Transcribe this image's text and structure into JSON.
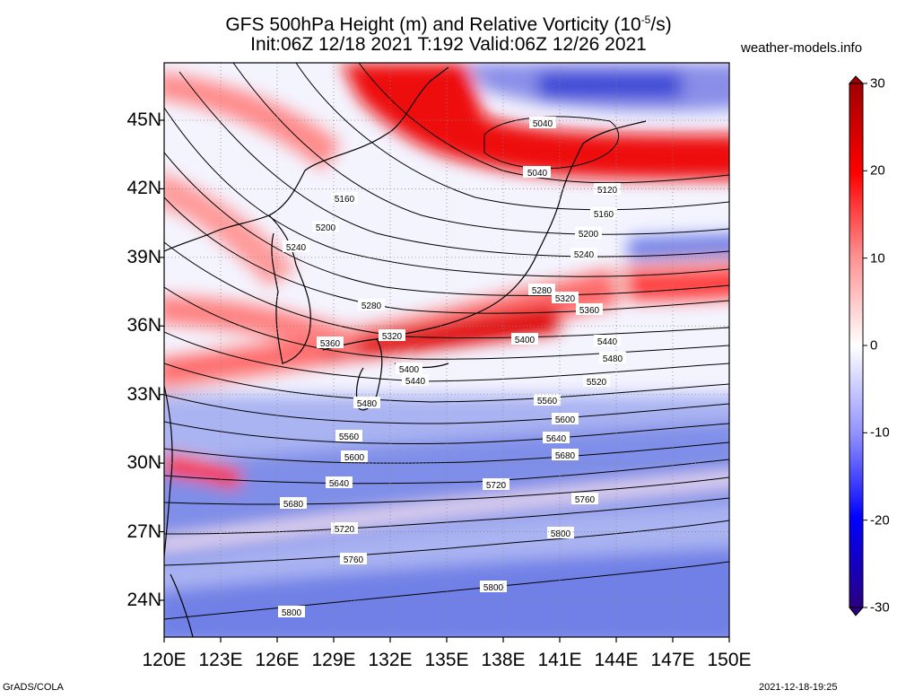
{
  "title_line1": "GFS 500hPa Height (m) and Relative Vorticity (10",
  "title_exp": "-5",
  "title_line1_end": "/s)",
  "title_line2": "Init:06Z 12/18 2021 T:192 Valid:06Z 12/26 2021",
  "site": "weather-models.info",
  "lat_labels": [
    {
      "text": "45N",
      "value": 45
    },
    {
      "text": "42N",
      "value": 42
    },
    {
      "text": "39N",
      "value": 39
    },
    {
      "text": "36N",
      "value": 36
    },
    {
      "text": "33N",
      "value": 33
    },
    {
      "text": "30N",
      "value": 30
    },
    {
      "text": "27N",
      "value": 27
    },
    {
      "text": "24N",
      "value": 24
    }
  ],
  "lon_labels": [
    {
      "text": "120E",
      "value": 120
    },
    {
      "text": "123E",
      "value": 123
    },
    {
      "text": "126E",
      "value": 126
    },
    {
      "text": "129E",
      "value": 129
    },
    {
      "text": "132E",
      "value": 132
    },
    {
      "text": "135E",
      "value": 135
    },
    {
      "text": "138E",
      "value": 138
    },
    {
      "text": "141E",
      "value": 141
    },
    {
      "text": "144E",
      "value": 144
    },
    {
      "text": "147E",
      "value": 147
    },
    {
      "text": "150E",
      "value": 150
    }
  ],
  "colorbar": {
    "ticks": [
      {
        "text": "30",
        "value": 30
      },
      {
        "text": "20",
        "value": 20
      },
      {
        "text": "10",
        "value": 10
      },
      {
        "text": "0",
        "value": 0
      },
      {
        "text": "-10",
        "value": -10
      },
      {
        "text": "-20",
        "value": -20
      },
      {
        "text": "-30",
        "value": -30
      }
    ],
    "colors": {
      "max": "#8b0000",
      "pos": "#ff0000",
      "zero": "#ffffff",
      "neg": "#0000ff",
      "min": "#1a0066"
    }
  },
  "height_contours": [
    {
      "label": "5040"
    },
    {
      "label": "5080"
    },
    {
      "label": "5120"
    },
    {
      "label": "5160"
    },
    {
      "label": "5200"
    },
    {
      "label": "5240"
    },
    {
      "label": "5280"
    },
    {
      "label": "5320"
    },
    {
      "label": "5360"
    },
    {
      "label": "5400"
    },
    {
      "label": "5440"
    },
    {
      "label": "5480"
    },
    {
      "label": "5520"
    },
    {
      "label": "5560"
    },
    {
      "label": "5600"
    },
    {
      "label": "5640"
    },
    {
      "label": "5680"
    },
    {
      "label": "5720"
    },
    {
      "label": "5760"
    },
    {
      "label": "5800"
    }
  ],
  "footer_left": "GrADS/COLA",
  "footer_right": "2021-12-18-19:25"
}
